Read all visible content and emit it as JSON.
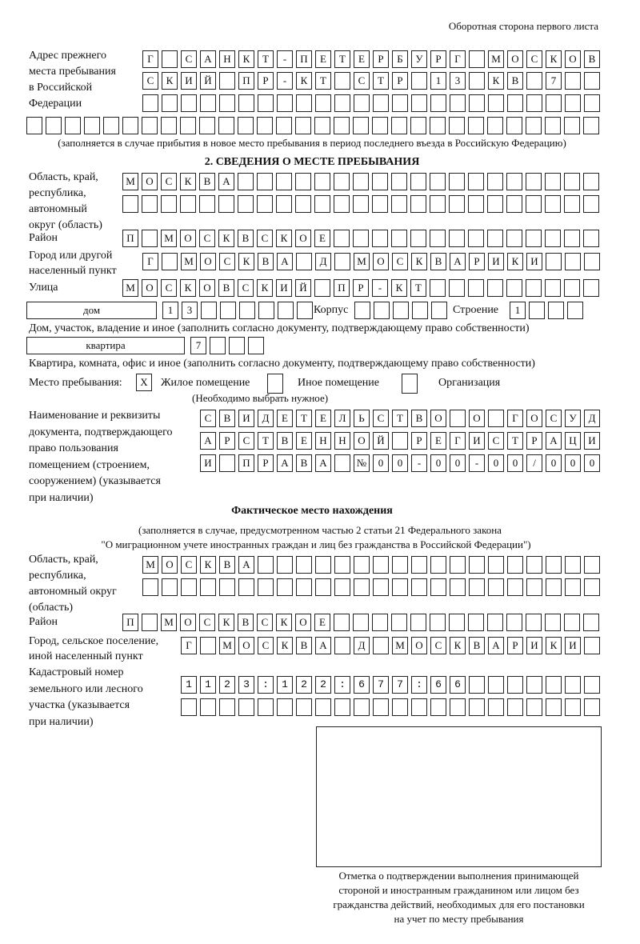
{
  "header": "Оборотная сторона первого листа",
  "prev_address": {
    "label": [
      "Адрес прежнего",
      "места пребывания",
      "в Российской",
      "Федерации"
    ],
    "rows": [
      {
        "text": "Г САНКТ-ПЕТЕРБУРГ МОСКОВ",
        "cells": 24
      },
      {
        "text": "СКИЙ ПР-КТ СТР 13 КВ 7",
        "cells": 24
      },
      {
        "text": "",
        "cells": 24
      },
      {
        "text": "",
        "cells": 30
      }
    ],
    "note": "(заполняется в случае прибытия в новое место пребывания в период последнего въезда в Российскую Федерацию)"
  },
  "section2": {
    "title": "2. СВЕДЕНИЯ О МЕСТЕ ПРЕБЫВАНИЯ",
    "region_label": [
      "Область, край,",
      "республика,",
      "автономный",
      "округ (область)"
    ],
    "region_rows": [
      {
        "text": "МОСКВА",
        "cells": 25
      },
      {
        "text": "",
        "cells": 25
      }
    ],
    "district_label": "Район",
    "district_row": {
      "text": "П МОСКВСКОЕ",
      "cells": 25
    },
    "city_label": [
      "Город или другой",
      "населенный пункт"
    ],
    "city_row": {
      "text": "Г МОСКВА Д МОСКВАРИКИ",
      "cells": 24
    },
    "street_label": "Улица",
    "street_row": {
      "text": "МОСКОВСКИЙ ПР-КТ",
      "cells": 25
    },
    "house_type": "дом",
    "house_row": {
      "text": "13",
      "cells": 8
    },
    "korpus_label": "Корпус",
    "korpus_row": {
      "text": "",
      "cells": 5
    },
    "building_label": "Строение",
    "building_row": {
      "text": "1",
      "cells": 4
    },
    "house_note": "Дом, участок, владение и иное (заполнить согласно документу, подтверждающему право собственности)",
    "apt_type": "квартира",
    "apt_row": {
      "text": "7",
      "cells": 4
    },
    "apt_note": "Квартира, комната, офис и иное (заполнить согласно документу, подтверждающему право собственности)",
    "stay_label": "Место пребывания:",
    "stay_options": [
      {
        "mark": "X",
        "label": "Жилое помещение",
        "checked": true
      },
      {
        "mark": "",
        "label": "Иное помещение",
        "checked": false
      },
      {
        "mark": "",
        "label": "Организация",
        "checked": false
      }
    ],
    "stay_note": "(Необходимо выбрать нужное)",
    "doc_label": [
      "Наименование и реквизиты",
      "документа, подтверждающего",
      "право пользования",
      "помещением (строением,",
      "сооружением) (указывается",
      "при наличии)"
    ],
    "doc_rows": [
      {
        "text": "СВИДЕТЕЛЬСТВО О ГОСУД",
        "cells": 21
      },
      {
        "text": "АРСТВЕННОЙ РЕГИСТРАЦИ",
        "cells": 21
      },
      {
        "text": "И ПРАВА №00-00-00/000",
        "cells": 21
      }
    ]
  },
  "actual": {
    "title": "Фактическое место нахождения",
    "note1": "(заполняется в случае, предусмотренном частью 2 статьи 21 Федерального закона",
    "note2": "\"О миграционном учете иностранных граждан и лиц без гражданства в Российской Федерации\")",
    "region_label": [
      "Область, край,",
      "республика,",
      "автономный округ",
      "(область)"
    ],
    "region_rows": [
      {
        "text": "МОСКВА",
        "cells": 24
      },
      {
        "text": "",
        "cells": 24
      }
    ],
    "district_label": "Район",
    "district_row": {
      "text": "П МОСКВСКОЕ",
      "cells": 25
    },
    "city_label": [
      "Город, сельское поселение,",
      "иной населенный пункт"
    ],
    "city_row": {
      "text": "Г МОСКВА Д МОСКВАРИКИ",
      "cells": 22
    },
    "cadastre_label": [
      "Кадастровый номер",
      "земельного или лесного",
      "участка (указывается",
      "при наличии)"
    ],
    "cadastre_rows": [
      {
        "text": "1123:122:677:66",
        "cells": 22
      },
      {
        "text": "",
        "cells": 22
      }
    ]
  },
  "stamp_caption": [
    "Отметка о подтверждении выполнения принимающей",
    "стороной и иностранным гражданином или лицом без",
    "гражданства действий, необходимых для его постановки",
    "на учет по месту пребывания"
  ]
}
